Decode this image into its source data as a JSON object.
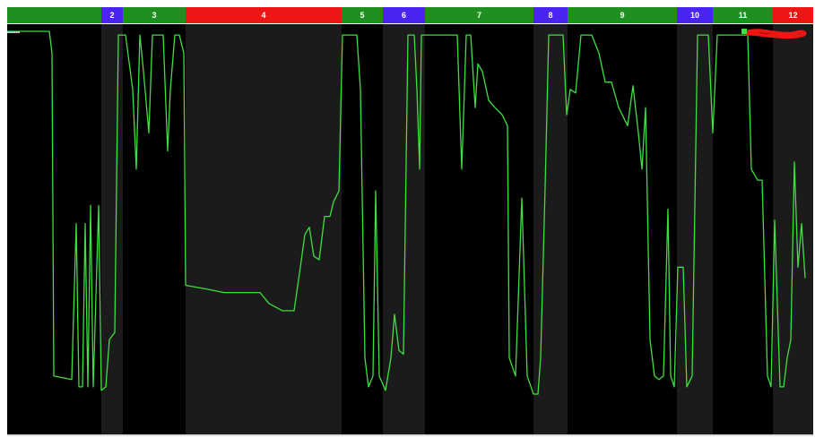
{
  "chart_data": {
    "type": "line",
    "segments": [
      {
        "label": null,
        "color": "#1f8f1f",
        "start": 0,
        "end": 105
      },
      {
        "label": "2",
        "color": "#4b24f0",
        "start": 105,
        "end": 129
      },
      {
        "label": "3",
        "color": "#1f8f1f",
        "start": 129,
        "end": 199
      },
      {
        "label": "4",
        "color": "#ee1515",
        "start": 199,
        "end": 373
      },
      {
        "label": "5",
        "color": "#1f8f1f",
        "start": 373,
        "end": 419
      },
      {
        "label": "6",
        "color": "#4b24f0",
        "start": 419,
        "end": 466
      },
      {
        "label": "7",
        "color": "#1f8f1f",
        "start": 466,
        "end": 587
      },
      {
        "label": "8",
        "color": "#4b24f0",
        "start": 587,
        "end": 625
      },
      {
        "label": "9",
        "color": "#1f8f1f",
        "start": 625,
        "end": 747
      },
      {
        "label": "10",
        "color": "#4b24f0",
        "start": 747,
        "end": 787
      },
      {
        "label": "11",
        "color": "#1f8f1f",
        "start": 787,
        "end": 854
      },
      {
        "label": "12",
        "color": "#ee1515",
        "start": 854,
        "end": 899
      }
    ],
    "x": [
      0,
      47,
      50,
      52,
      72,
      77,
      80,
      84,
      87,
      90,
      93,
      96,
      102,
      105,
      110,
      114,
      120,
      124,
      132,
      140,
      144,
      148,
      152,
      158,
      162,
      168,
      174,
      179,
      182,
      187,
      192,
      197,
      199,
      222,
      242,
      262,
      282,
      292,
      307,
      320,
      327,
      332,
      337,
      342,
      348,
      354,
      360,
      364,
      370,
      374,
      390,
      394,
      399,
      403,
      408,
      411,
      415,
      422,
      428,
      432,
      437,
      442,
      447,
      454,
      457,
      460,
      462,
      472,
      482,
      492,
      502,
      507,
      512,
      517,
      522,
      525,
      530,
      537,
      544,
      552,
      558,
      560,
      567,
      574,
      580,
      587,
      592,
      595,
      600,
      604,
      620,
      624,
      628,
      634,
      640,
      652,
      660,
      667,
      674,
      682,
      692,
      698,
      704,
      708,
      712,
      717,
      722,
      727,
      732,
      737,
      740,
      744,
      748,
      754,
      758,
      764,
      770,
      782,
      787,
      792,
      800,
      812,
      822,
      826,
      830,
      837,
      842,
      848,
      852,
      856,
      862,
      866,
      870,
      874,
      878,
      882,
      886,
      890
    ],
    "series": [
      {
        "color": "#3ee03e",
        "values": [
          100,
          100,
          94,
          5,
          4,
          47,
          2,
          2,
          47,
          2,
          52,
          2,
          52,
          1,
          2,
          15,
          17,
          99,
          99,
          84,
          62,
          99,
          89,
          72,
          99,
          99,
          99,
          67,
          84,
          99,
          99,
          94,
          30,
          29,
          28,
          28,
          28,
          25,
          23,
          23,
          35,
          44,
          46,
          38,
          37,
          49,
          49,
          53,
          56,
          99,
          99,
          84,
          10,
          2,
          5,
          56,
          5,
          1,
          10,
          22,
          12,
          11,
          99,
          99,
          84,
          62,
          99,
          99,
          99,
          99,
          99,
          62,
          99,
          99,
          79,
          91,
          89,
          81,
          79,
          77,
          74,
          10,
          5,
          54,
          5,
          0,
          0,
          10,
          57,
          99,
          99,
          77,
          84,
          83,
          99,
          99,
          94,
          86,
          86,
          79,
          74,
          85,
          72,
          62,
          79,
          15,
          5,
          4,
          5,
          51,
          5,
          2,
          35,
          35,
          2,
          5,
          99,
          99,
          72,
          99,
          99,
          99,
          99,
          99,
          62,
          59,
          59,
          5,
          2,
          48,
          2,
          2,
          10,
          15,
          64,
          35,
          47,
          32
        ]
      }
    ],
    "xlim": [
      0,
      899
    ],
    "ylim": [
      0,
      100
    ]
  }
}
